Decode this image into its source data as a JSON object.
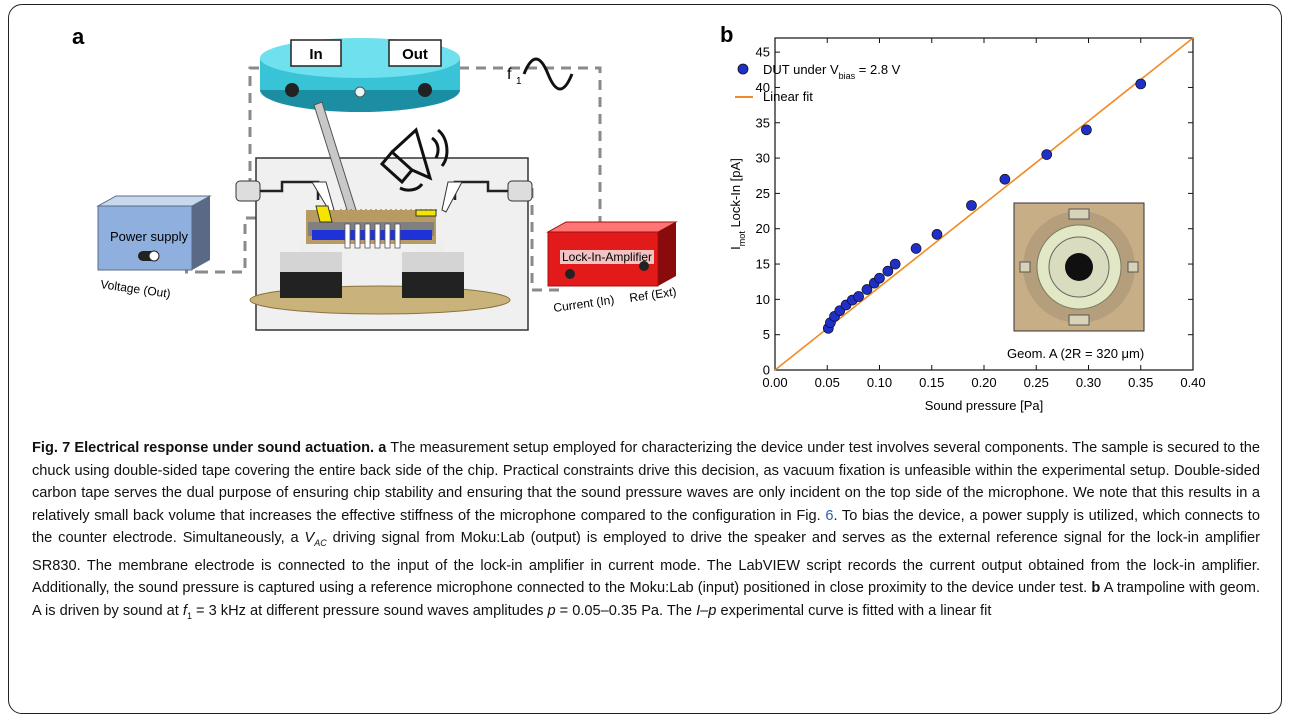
{
  "panel_a": {
    "letter": "a",
    "knob_in": "In",
    "knob_out": "Out",
    "freq_label": "f",
    "freq_sub": "1",
    "power_supply": "Power supply",
    "voltage_out": "Voltage (Out)",
    "lock_in": "Lock-In-Amplifier",
    "current_in": "Current (In)",
    "ref_ext": "Ref (Ext)"
  },
  "panel_b": {
    "letter": "b",
    "inset_label": "Geom. A (2R = 320 μm)"
  },
  "chart_data": {
    "type": "scatter",
    "xlabel": "Sound pressure [Pa]",
    "ylabel_main": "I",
    "ylabel_sub": "mot",
    "ylabel_rest": " Lock-In [pA]",
    "xlim": [
      0,
      0.4
    ],
    "ylim": [
      0,
      47
    ],
    "xticks": [
      0.0,
      0.05,
      0.1,
      0.15,
      0.2,
      0.25,
      0.3,
      0.35,
      0.4
    ],
    "xtick_labels": [
      "0.00",
      "0.05",
      "0.10",
      "0.15",
      "0.20",
      "0.25",
      "0.30",
      "0.35",
      "0.40"
    ],
    "yticks": [
      0,
      5,
      10,
      15,
      20,
      25,
      30,
      35,
      40,
      45
    ],
    "series": [
      {
        "name": "DUT under V",
        "name_sub": "bias",
        "name_rest": " = 2.8 V",
        "type": "scatter",
        "color": "#1f2fc8",
        "x": [
          0.051,
          0.053,
          0.057,
          0.062,
          0.068,
          0.074,
          0.08,
          0.088,
          0.095,
          0.1,
          0.108,
          0.115,
          0.135,
          0.155,
          0.188,
          0.22,
          0.26,
          0.298,
          0.35
        ],
        "y": [
          5.9,
          6.7,
          7.6,
          8.4,
          9.2,
          9.9,
          10.4,
          11.4,
          12.3,
          13.0,
          14.0,
          15.0,
          17.2,
          19.2,
          23.3,
          27.0,
          30.5,
          34.0,
          40.5
        ]
      },
      {
        "name": "Linear fit",
        "type": "line",
        "color": "#f08a24",
        "x": [
          0.0,
          0.4
        ],
        "y": [
          0.0,
          47.0
        ]
      }
    ],
    "grid": false,
    "legend": "top-left"
  },
  "caption": {
    "fig_label": "Fig. 7 Electrical response under sound actuation.",
    "a_label": "a",
    "text1": "The measurement setup employed for characterizing the device under test involves several components. The sample is secured to the chuck using double-sided tape covering the entire back side of the chip. Practical constraints drive this decision, as vacuum fixation is unfeasible within the experimental setup. Double-sided carbon tape serves the dual purpose of ensuring chip stability and ensuring that the sound pressure waves are only incident on the top side of the microphone. We note that this results in a relatively small back volume that increases the effective stiffness of the microphone compared to the configuration in Fig.",
    "fig_ref": "6",
    "text2": ". To bias the device, a power supply is utilized, which connects to the counter electrode. Simultaneously, a",
    "vac": "V",
    "vac_sub": "AC",
    "text3": "driving signal from Moku:Lab (output) is employed to drive the speaker and serves as the external reference signal for the lock-in amplifier SR830. The membrane electrode is connected to the input of the lock-in amplifier in current mode. The LabVIEW script records the current output obtained from the lock-in amplifier. Additionally, the sound pressure is captured using a reference microphone connected to the Moku:Lab (input) positioned in close proximity to the device under test.",
    "b_label": "b",
    "text4": "A trampoline with geom. A is driven by sound at",
    "f1": "f",
    "f1_sub": "1",
    "text5": "= 3 kHz at different pressure sound waves amplitudes",
    "p": "p",
    "text6": "= 0.05–0.35 Pa. The",
    "ip": "I–p",
    "text7": "experimental curve is fitted with a linear fit"
  }
}
